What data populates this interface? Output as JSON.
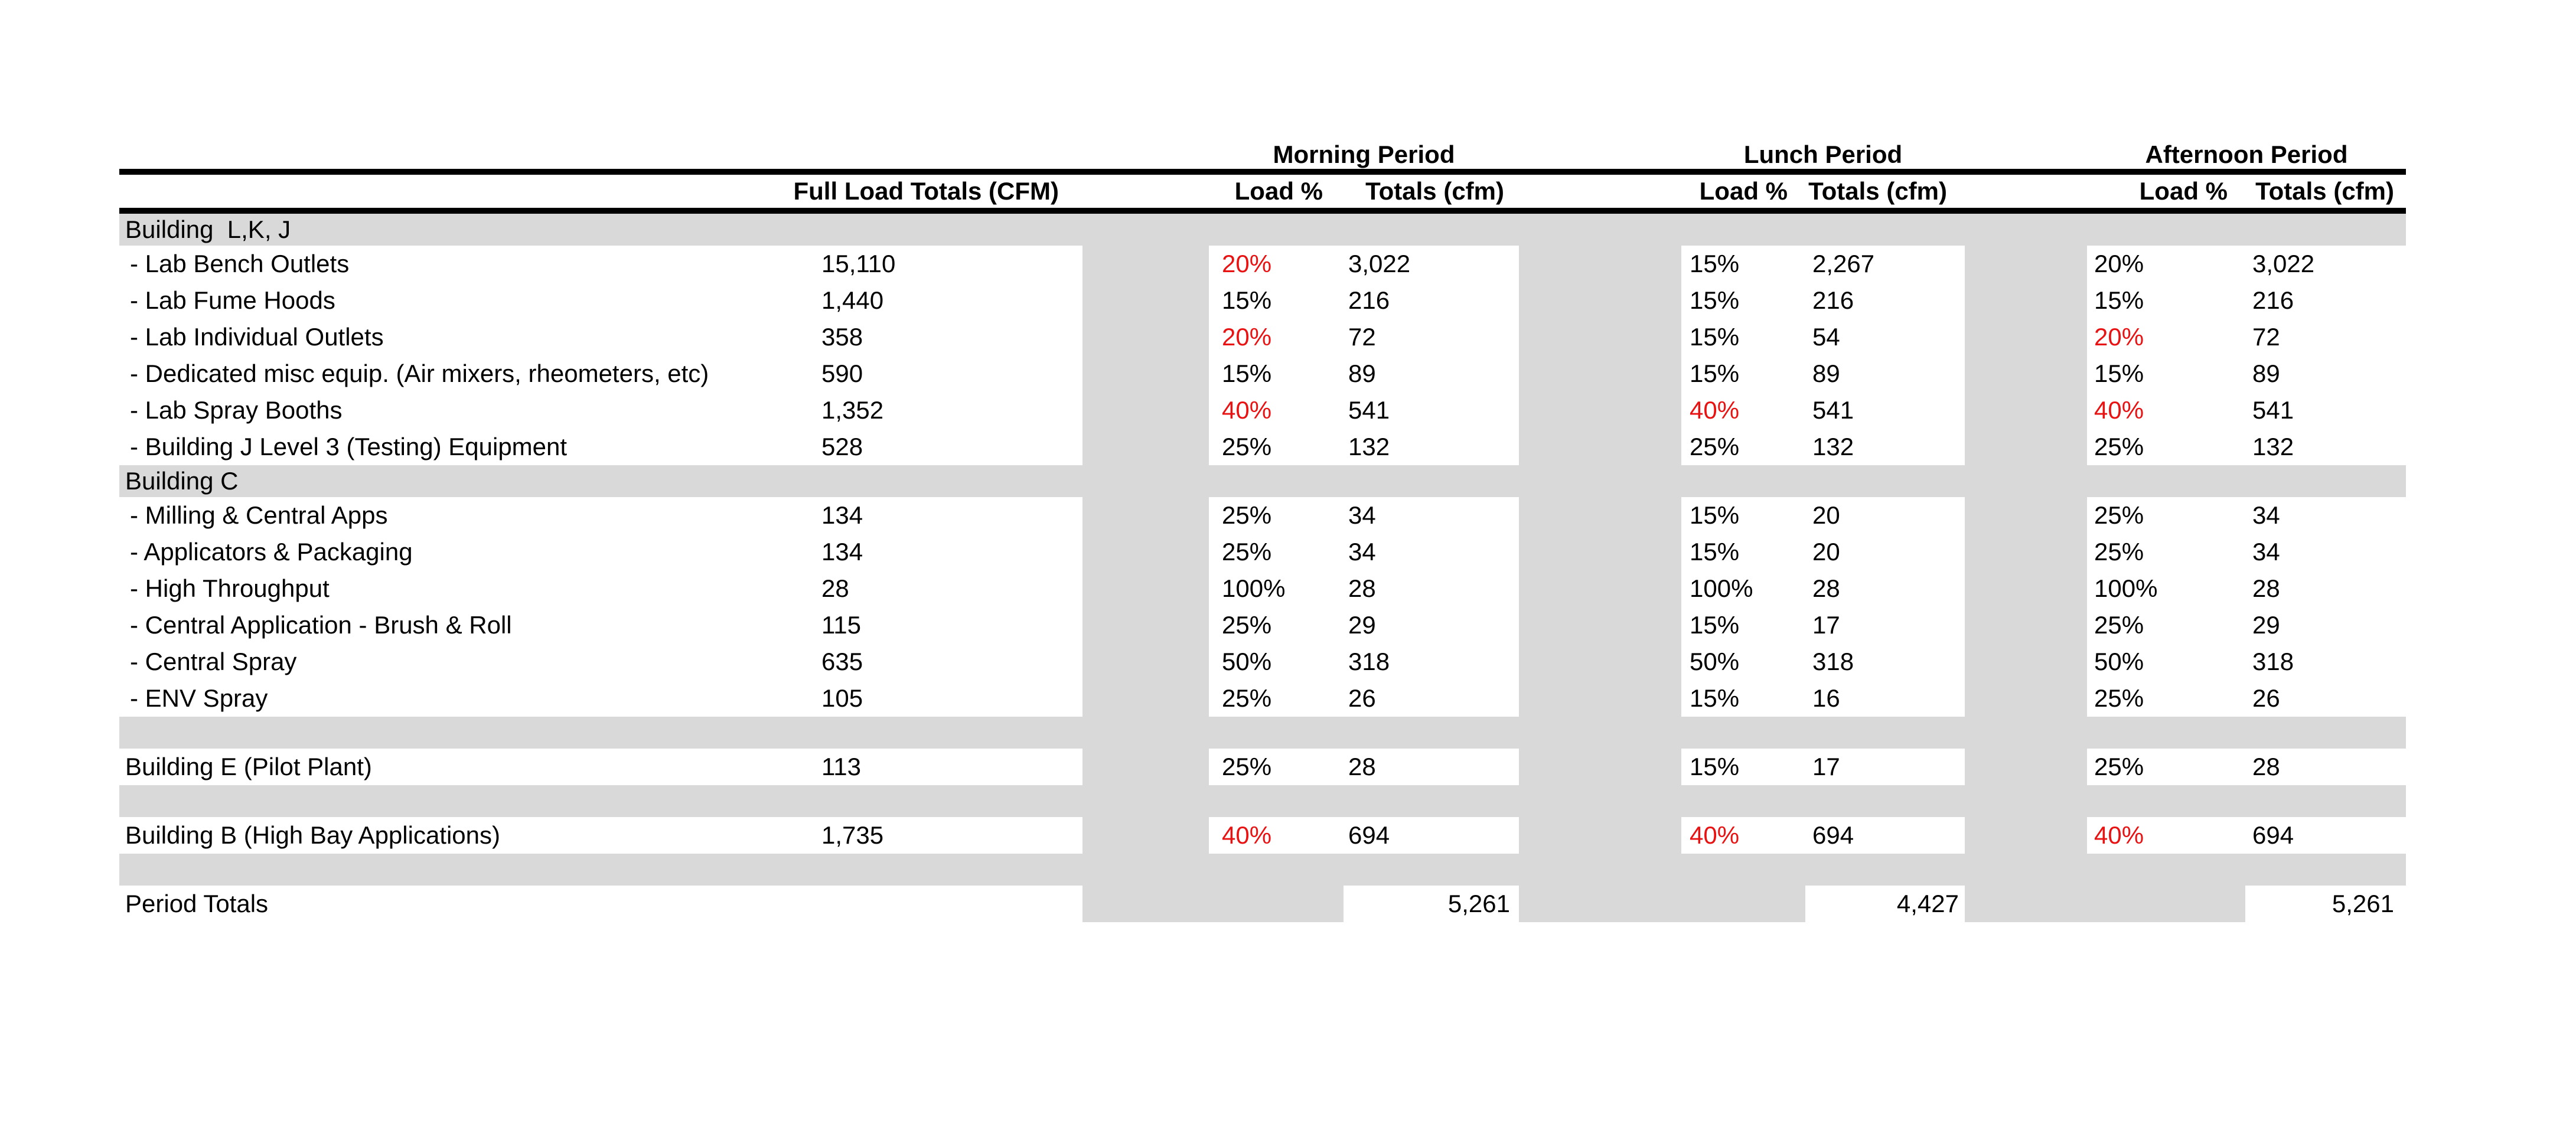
{
  "periods": [
    "Morning Period",
    "Lunch Period",
    "Afternoon Period"
  ],
  "headers": {
    "full_load": "Full Load Totals (CFM)",
    "load_pct": "Load %",
    "totals": "Totals (cfm)"
  },
  "colors": {
    "row_gray": "#d9d9d9",
    "accent_red": "#e81212",
    "rule_black": "#000000"
  },
  "rows": [
    {
      "type": "section",
      "label": "Building  L,K, J"
    },
    {
      "type": "item",
      "label": "- Lab Bench Outlets",
      "full": "15,110",
      "m_pct": "20%",
      "m_red": true,
      "m_tot": "3,022",
      "l_pct": "15%",
      "l_red": false,
      "l_tot": "2,267",
      "a_pct": "20%",
      "a_red": false,
      "a_tot": "3,022"
    },
    {
      "type": "item",
      "label": "- Lab Fume Hoods",
      "full": "1,440",
      "m_pct": "15%",
      "m_red": false,
      "m_tot": "216",
      "l_pct": "15%",
      "l_red": false,
      "l_tot": "216",
      "a_pct": "15%",
      "a_red": false,
      "a_tot": "216"
    },
    {
      "type": "item",
      "label": "- Lab Individual Outlets",
      "full": "358",
      "m_pct": "20%",
      "m_red": true,
      "m_tot": "72",
      "l_pct": "15%",
      "l_red": false,
      "l_tot": "54",
      "a_pct": "20%",
      "a_red": true,
      "a_tot": "72"
    },
    {
      "type": "item",
      "label": "- Dedicated misc equip. (Air mixers, rheometers, etc)",
      "full": "590",
      "m_pct": "15%",
      "m_red": false,
      "m_tot": "89",
      "l_pct": "15%",
      "l_red": false,
      "l_tot": "89",
      "a_pct": "15%",
      "a_red": false,
      "a_tot": "89"
    },
    {
      "type": "item",
      "label": "- Lab Spray Booths",
      "full": "1,352",
      "m_pct": "40%",
      "m_red": true,
      "m_tot": "541",
      "l_pct": "40%",
      "l_red": true,
      "l_tot": "541",
      "a_pct": "40%",
      "a_red": true,
      "a_tot": "541"
    },
    {
      "type": "item",
      "label": "- Building J Level 3 (Testing) Equipment",
      "full": "528",
      "m_pct": "25%",
      "m_red": false,
      "m_tot": "132",
      "l_pct": "25%",
      "l_red": false,
      "l_tot": "132",
      "a_pct": "25%",
      "a_red": false,
      "a_tot": "132"
    },
    {
      "type": "section",
      "label": "Building C"
    },
    {
      "type": "item",
      "label": "- Milling & Central Apps",
      "full": "134",
      "m_pct": "25%",
      "m_red": false,
      "m_tot": "34",
      "l_pct": "15%",
      "l_red": false,
      "l_tot": "20",
      "a_pct": "25%",
      "a_red": false,
      "a_tot": "34"
    },
    {
      "type": "item",
      "label": "- Applicators & Packaging",
      "full": "134",
      "m_pct": "25%",
      "m_red": false,
      "m_tot": "34",
      "l_pct": "15%",
      "l_red": false,
      "l_tot": "20",
      "a_pct": "25%",
      "a_red": false,
      "a_tot": "34"
    },
    {
      "type": "item",
      "label": "- High Throughput",
      "full": "28",
      "m_pct": "100%",
      "m_red": false,
      "m_tot": "28",
      "l_pct": "100%",
      "l_red": false,
      "l_tot": "28",
      "a_pct": "100%",
      "a_red": false,
      "a_tot": "28"
    },
    {
      "type": "item",
      "label": "- Central Application - Brush & Roll",
      "full": "115",
      "m_pct": "25%",
      "m_red": false,
      "m_tot": "29",
      "l_pct": "15%",
      "l_red": false,
      "l_tot": "17",
      "a_pct": "25%",
      "a_red": false,
      "a_tot": "29"
    },
    {
      "type": "item",
      "label": "- Central Spray",
      "full": "635",
      "m_pct": "50%",
      "m_red": false,
      "m_tot": "318",
      "l_pct": "50%",
      "l_red": false,
      "l_tot": "318",
      "a_pct": "50%",
      "a_red": false,
      "a_tot": "318"
    },
    {
      "type": "item",
      "label": "- ENV Spray",
      "full": "105",
      "m_pct": "25%",
      "m_red": false,
      "m_tot": "26",
      "l_pct": "15%",
      "l_red": false,
      "l_tot": "16",
      "a_pct": "25%",
      "a_red": false,
      "a_tot": "26"
    },
    {
      "type": "spacer"
    },
    {
      "type": "standalone",
      "label": "Building E (Pilot Plant)",
      "full": "113",
      "m_pct": "25%",
      "m_red": false,
      "m_tot": "28",
      "l_pct": "15%",
      "l_red": false,
      "l_tot": "17",
      "a_pct": "25%",
      "a_red": false,
      "a_tot": "28"
    },
    {
      "type": "spacer"
    },
    {
      "type": "standalone",
      "label": "Building B (High Bay Applications)",
      "full": "1,735",
      "m_pct": "40%",
      "m_red": true,
      "m_tot": "694",
      "l_pct": "40%",
      "l_red": true,
      "l_tot": "694",
      "a_pct": "40%",
      "a_red": true,
      "a_tot": "694"
    },
    {
      "type": "spacer"
    },
    {
      "type": "totals",
      "label": "Period Totals",
      "m_tot": "5,261",
      "l_tot": "4,427",
      "a_tot": "5,261"
    }
  ]
}
